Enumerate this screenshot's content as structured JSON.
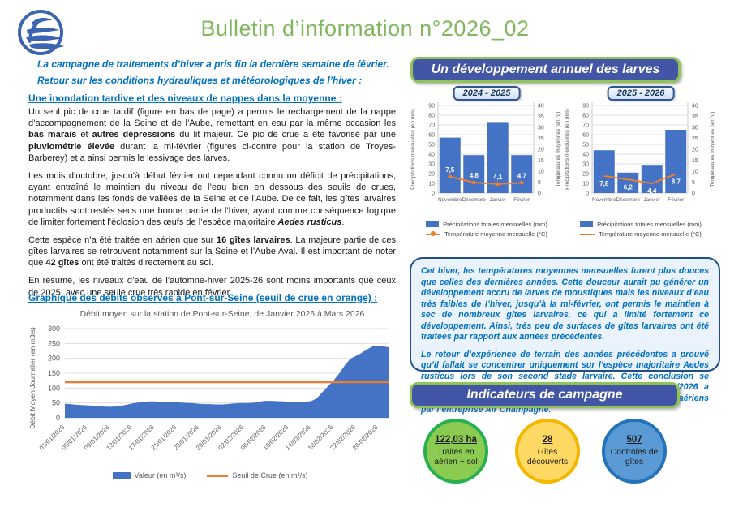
{
  "header": {
    "title": "Bulletin d’information n°2026_02",
    "logo": "wave-circle-logo"
  },
  "intro": {
    "line1": "La campagne de traitements d’hiver a pris fin la dernière semaine de février.",
    "line2": "Retour sur les conditions hydrauliques et météorologiques de l’hiver :"
  },
  "section_flood": {
    "heading": "Une inondation tardive et des niveaux de nappes dans la moyenne :",
    "paragraphs": [
      [
        {
          "t": "Un seul pic de crue tardif (figure en bas de page) a permis le rechargement de la nappe d’accompagnement de la Seine et de l’Aube, remettant en eau par la même occasion les "
        },
        {
          "t": "bas marais",
          "b": true
        },
        {
          "t": " et "
        },
        {
          "t": "autres dépressions",
          "b": true
        },
        {
          "t": " du lit majeur. Ce pic de crue a été favorisé par une "
        },
        {
          "t": "pluviométrie élevée",
          "b": true
        },
        {
          "t": " durant la mi-février (figures ci-contre pour la station de Troyes-Barberey) et a ainsi permis le lessivage des larves."
        }
      ],
      [
        {
          "t": "Les mois d’octobre, jusqu'à début février ont cependant connu un déficit de précipitations, ayant entraîné le maintien du niveau de l’eau bien en dessous des seuils de crues, notamment dans les fonds de vallées de la Seine et de l’Aube. De ce fait, les gîtes larvaires productifs sont restés secs une bonne partie de l’hiver, ayant comme conséquence logique de limiter fortement l’éclosion des œufs de l’espèce majoritaire "
        },
        {
          "t": "Aedes rusticus",
          "b": true,
          "i": true
        },
        {
          "t": "."
        }
      ],
      [
        {
          "t": "Cette espèce n’a été traitée en aérien que sur "
        },
        {
          "t": "16 gîtes larvaires",
          "b": true
        },
        {
          "t": ". La majeure partie de ces gîtes larvaires se retrouvent notamment sur la Seine et l’Aube Aval. Il est important de noter que "
        },
        {
          "t": "42 gîtes",
          "b": true
        },
        {
          "t": " ont été traités directement au sol."
        }
      ],
      [
        {
          "t": "En résumé, les niveaux d’eau de l’automne-hiver 2025-26 sont moins importants que ceux de 2025, avec une seule crue très rapide en février."
        }
      ]
    ]
  },
  "debit_section": {
    "heading": "Graphique des débits observés à Pont-sur-Seine (seuil de crue en orange) :"
  },
  "larves_section": {
    "title": "Un développement annuel des larves"
  },
  "summary_box": {
    "p1": "Cet hiver, les températures moyennes mensuelles furent plus douces que celles des dernières années. Cette douceur aurait pu générer un développement accru de larves de moustiques mais les niveaux d’eau très faibles de l’hiver, jusqu’à la mi-février, ont permis le maintien à sec de nombreux gîtes larvaires, ce qui a limité fortement ce développement. Ainsi, très peu de surfaces de gîtes larvaires ont été traitées par rapport aux années précédentes.",
    "p2": "Le retour d’expérience de terrain des années précédentes a prouvé qu’il fallait se concentrer uniquement sur l’espèce majoritaire Aedes rusticus lors de son second stade larvaire. Cette conclusion se confirme également cette année. Ainsi, la date du 24/02/2026 a rapidement été choisie pour la mise en œuvre des épandages aériens par l’entreprise Air Champagne."
  },
  "indicators": {
    "title": "Indicateurs de campagne",
    "items": [
      {
        "value": "122,03 ha",
        "label": "Traités en aérien + sol",
        "fill": "#8CCB52",
        "border": "#27B050"
      },
      {
        "value": "28",
        "label": "Gîtes découverts",
        "fill": "#FFD964",
        "border": "#F3B700"
      },
      {
        "value": "507",
        "label": "Contrôles de gîtes",
        "fill": "#5B9BD5",
        "border": "#2472B8"
      }
    ]
  },
  "colors": {
    "bar_blue": "#4472C4",
    "line_orange": "#ED7D31",
    "grid": "#D9D9D9",
    "axis": "#BFBFBF",
    "tick_text": "#595959",
    "banner_bg": "#4356A5",
    "banner_border": "#90C456",
    "title_green": "#7FB75D",
    "text_blue": "#0070C0"
  },
  "chart_data": [
    {
      "type": "bar",
      "title": "2024 - 2025",
      "categories": [
        "Novembre",
        "Décembre",
        "Janvier",
        "Février"
      ],
      "series": [
        {
          "name": "Précipitations totales mensuelles (mm)",
          "type": "bar",
          "axis": "left",
          "values": [
            57,
            39,
            73,
            39
          ]
        },
        {
          "name": "Température moyenne mensuelle (°C)",
          "type": "line",
          "axis": "right",
          "values": [
            7.5,
            4.8,
            4.1,
            4.7
          ],
          "labels": [
            "7,5",
            "4,8",
            "4,1",
            "4,7"
          ],
          "markers": true,
          "label_position": "above"
        }
      ],
      "ylabel_left": "Précipitations mensuelles (en mm)",
      "ylabel_right": "Températures moyennes (en °c)",
      "ylim_left": [
        0,
        90
      ],
      "ytick_left": 10,
      "ylim_right": [
        0,
        40
      ],
      "ytick_right": 5,
      "grid": true,
      "legend_position": "bottom"
    },
    {
      "type": "bar",
      "title": "2025 - 2026",
      "categories": [
        "Novembre",
        "Décembre",
        "Janvier",
        "Février"
      ],
      "series": [
        {
          "name": "Précipitations totales mensuelles (mm)",
          "type": "bar",
          "axis": "left",
          "values": [
            44,
            21,
            29,
            65
          ]
        },
        {
          "name": "Température moyenne mensuelle (°C)",
          "type": "line",
          "axis": "right",
          "values": [
            7.8,
            6.2,
            4.4,
            8.7
          ],
          "labels": [
            "7,8",
            "6,2",
            "4,4",
            "8,7"
          ],
          "markers": false,
          "label_position": "below"
        }
      ],
      "ylabel_left": "Précipitations mensuelles (en mm)",
      "ylabel_right": "Températures moyennes (en °c)",
      "ylim_left": [
        0,
        90
      ],
      "ytick_left": 10,
      "ylim_right": [
        0,
        40
      ],
      "ytick_right": 5,
      "grid": true,
      "legend_position": "bottom"
    },
    {
      "type": "area",
      "title": "Débit moyen sur la station de Pont-sur-Seine, de Janvier 2026 à Mars 2026",
      "ylabel": "Débit Moyen Journalier (en m3/s)",
      "ylim": [
        0,
        300
      ],
      "ytick": 50,
      "xticklabels": [
        "01/01/2026",
        "05/01/2026",
        "09/01/2026",
        "13/01/2026",
        "17/01/2026",
        "21/01/2026",
        "25/01/2026",
        "29/01/2026",
        "02/02/2026",
        "06/02/2026",
        "10/02/2026",
        "14/02/2026",
        "18/02/2026",
        "22/02/2026",
        "26/02/2026"
      ],
      "xtick_every": 4,
      "values": [
        47,
        46,
        44,
        43,
        42,
        41,
        39,
        38,
        37,
        38,
        40,
        44,
        48,
        51,
        53,
        55,
        55,
        54,
        53,
        52,
        52,
        51,
        50,
        49,
        47,
        46,
        46,
        45,
        45,
        46,
        48,
        49,
        50,
        50,
        51,
        55,
        57,
        57,
        56,
        55,
        54,
        53,
        53,
        54,
        56,
        65,
        85,
        105,
        125,
        148,
        175,
        198,
        208,
        218,
        230,
        240,
        241,
        240,
        237
      ],
      "threshold": 120,
      "legend": [
        "Valeur (en m³/s)",
        "Seuil de Crue (en m³/s)"
      ],
      "grid": true,
      "legend_position": "bottom"
    }
  ]
}
